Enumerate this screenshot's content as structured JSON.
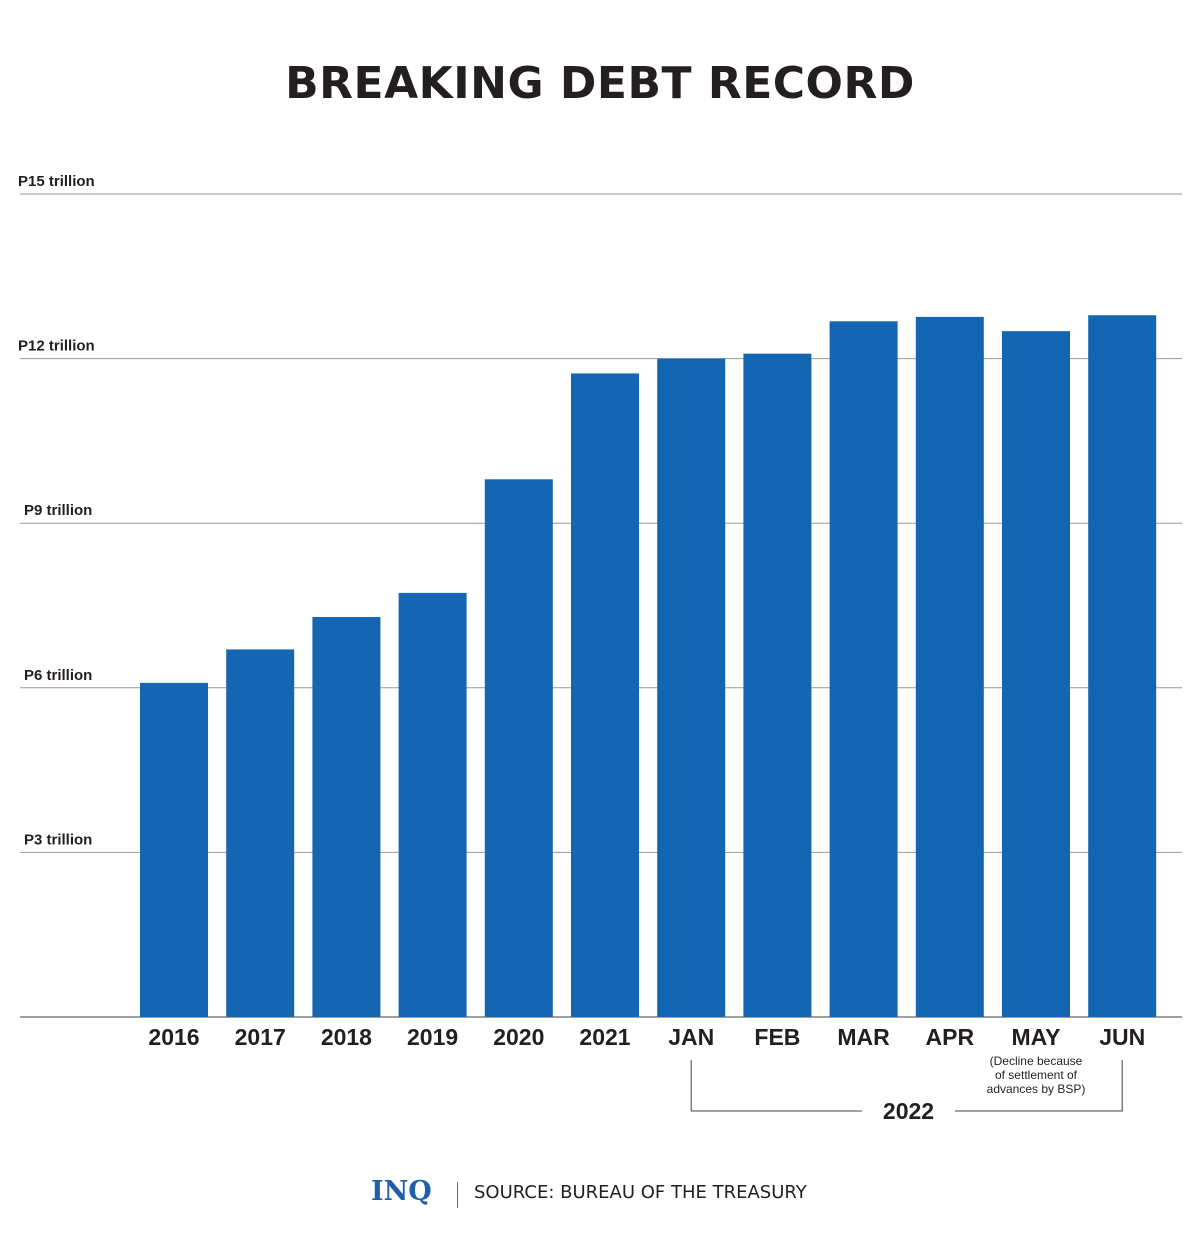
{
  "chart_data": {
    "type": "bar",
    "title": "BREAKING DEBT RECORD",
    "categories": [
      "2016",
      "2017",
      "2018",
      "2019",
      "2020",
      "2021",
      "JAN",
      "FEB",
      "MAR",
      "APR",
      "MAY",
      "JUN"
    ],
    "values": [
      6.09,
      6.7,
      7.29,
      7.73,
      9.8,
      11.73,
      12.0,
      12.09,
      12.68,
      12.76,
      12.5,
      12.79
    ],
    "ylim": [
      0,
      15
    ],
    "yticks": [
      3,
      6,
      9,
      12,
      15
    ],
    "ytick_labels": [
      "P3 trillion",
      "P6 trillion",
      "P9 trillion",
      "P12  trillion",
      "P15 trillion"
    ],
    "grid": true,
    "bar_color": "#1466b2",
    "annotations": [
      {
        "category": "MAY",
        "lines": [
          "(Decline because",
          "of settlement of",
          "advances by BSP)"
        ]
      }
    ],
    "group": {
      "label": "2022",
      "from": "JAN",
      "to": "JUN"
    }
  },
  "footer": {
    "logo": "INQ",
    "source": "SOURCE: BUREAU OF THE TREASURY"
  }
}
